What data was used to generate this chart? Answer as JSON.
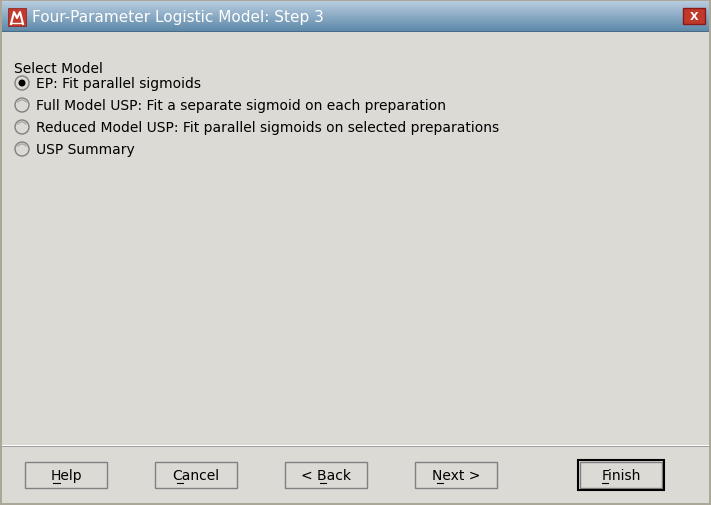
{
  "title": "Four-Parameter Logistic Model: Step 3",
  "body_bg": "#dcdad5",
  "header_bg_top": "#b8cce0",
  "header_bg_bottom": "#7a9fc0",
  "border_outer": "#6a8faf",
  "border_inner": "#ffffff",
  "section_label": "Select Model",
  "radio_options": [
    "EP: Fit parallel sigmoids",
    "Full Model USP: Fit a separate sigmoid on each preparation",
    "Reduced Model USP: Fit parallel sigmoids on selected preparations",
    "USP Summary"
  ],
  "selected_index": 0,
  "buttons": [
    "Help",
    "Cancel",
    "< Back",
    "Next >",
    "Finish"
  ],
  "button_highlighted": "Finish",
  "text_color": "#000000",
  "button_bg": "#dcdad5",
  "font_size": 10,
  "title_font_size": 11,
  "close_btn_color": "#c0392b",
  "icon_color": "#c0392b",
  "underline_chars": [
    "H",
    "C",
    "B",
    "N",
    "F"
  ],
  "underline_positions": [
    0,
    0,
    2,
    0,
    0
  ]
}
